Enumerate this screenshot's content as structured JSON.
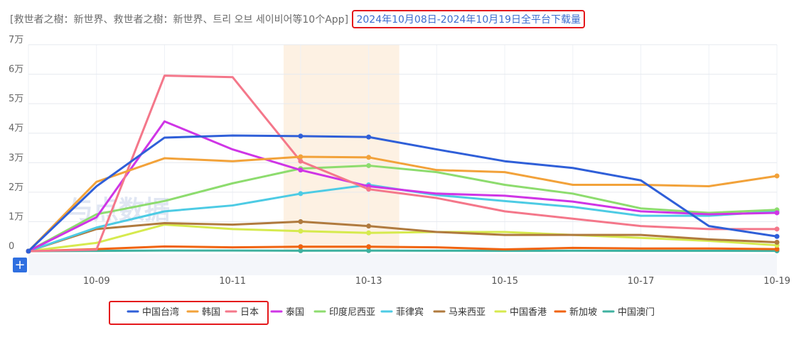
{
  "title": {
    "apps": "[救世者之樹：新世界、救世者之樹：新世界、트리 오브 세이비어等10个App]",
    "range": "2024年10月08日-2024年10月19日全平台下载量"
  },
  "watermark": "与点数据",
  "add_button_label": "+",
  "chart_data": {
    "type": "line",
    "x": [
      "10-08",
      "10-09",
      "10-10",
      "10-11",
      "10-12",
      "10-13",
      "10-14",
      "10-15",
      "10-16",
      "10-17",
      "10-18",
      "10-19"
    ],
    "x_tick_labels": [
      "10-09",
      "10-11",
      "10-13",
      "10-15",
      "10-17",
      "10-19"
    ],
    "y_tick_labels": [
      "0",
      "1万",
      "2万",
      "3万",
      "4万",
      "5万",
      "6万",
      "7万"
    ],
    "ylim": [
      0,
      70000
    ],
    "highlight_range": [
      "10-12",
      "10-13"
    ],
    "grid": "horizontal",
    "legend_position": "bottom",
    "series": [
      {
        "name": "中国台湾",
        "color": "#2f5fd8",
        "values": [
          0,
          22000,
          38500,
          39200,
          39000,
          38700,
          34500,
          30500,
          28200,
          24000,
          8500,
          5000
        ]
      },
      {
        "name": "韩国",
        "color": "#f2a23a",
        "values": [
          0,
          23500,
          31500,
          30500,
          32000,
          31800,
          27500,
          26800,
          22500,
          22500,
          22000,
          25500
        ]
      },
      {
        "name": "日本",
        "color": "#f4778a",
        "values": [
          0,
          500,
          59500,
          59000,
          30500,
          21000,
          18000,
          13500,
          11000,
          8500,
          7500,
          7500
        ]
      },
      {
        "name": "泰国",
        "color": "#cf35e6",
        "values": [
          0,
          11500,
          44000,
          34500,
          27500,
          22000,
          19500,
          18800,
          16800,
          13500,
          12500,
          13000
        ]
      },
      {
        "name": "印度尼西亚",
        "color": "#8ddc6e",
        "values": [
          0,
          12500,
          17000,
          23000,
          28000,
          29000,
          26800,
          22500,
          19500,
          14500,
          13000,
          14000
        ]
      },
      {
        "name": "菲律宾",
        "color": "#4dcbe4",
        "values": [
          0,
          8000,
          13500,
          15500,
          19500,
          22500,
          19000,
          17000,
          15000,
          12000,
          12000,
          13500
        ]
      },
      {
        "name": "马来西亚",
        "color": "#b07a3e",
        "values": [
          0,
          7500,
          9500,
          9000,
          10000,
          8500,
          6500,
          5500,
          5500,
          5500,
          4000,
          3000
        ]
      },
      {
        "name": "中国香港",
        "color": "#d6ea4e",
        "values": [
          0,
          2800,
          9000,
          7500,
          6800,
          6200,
          6500,
          6500,
          5500,
          4500,
          3500,
          2000
        ]
      },
      {
        "name": "新加坡",
        "color": "#f0630f",
        "values": [
          0,
          700,
          1600,
          1300,
          1500,
          1500,
          1300,
          600,
          1100,
          900,
          900,
          700
        ]
      },
      {
        "name": "中国澳门",
        "color": "#3fb1a0",
        "values": [
          0,
          100,
          200,
          200,
          150,
          180,
          150,
          120,
          140,
          130,
          120,
          100
        ]
      }
    ]
  }
}
